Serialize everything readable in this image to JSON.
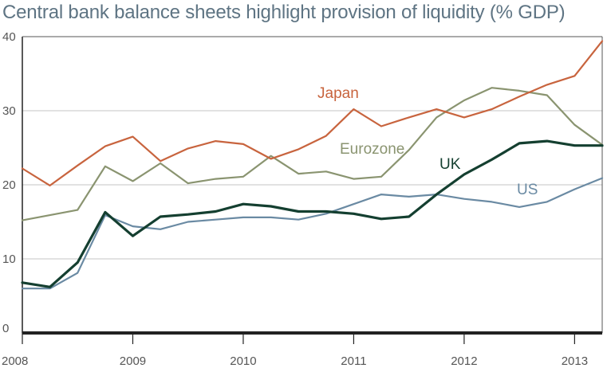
{
  "title": "Central bank balance sheets highlight provision of liquidity (% GDP)",
  "colors": {
    "japan": "#c8643e",
    "eurozone": "#8a9470",
    "uk": "#143f30",
    "us": "#6a8aa3",
    "grid": "#c4c4c4",
    "axis": "#222222"
  },
  "chart_data": {
    "type": "line",
    "title": "Central bank balance sheets highlight provision of liquidity (% GDP)",
    "xlabel": "",
    "ylabel": "",
    "xlim": [
      2008.0,
      2013.25
    ],
    "ylim": [
      0,
      40
    ],
    "yticks": [
      0,
      10,
      20,
      30,
      40
    ],
    "xticks": [
      2008,
      2009,
      2010,
      2011,
      2012,
      2013
    ],
    "ytick_labels": [
      "0",
      "10",
      "20",
      "30",
      "40"
    ],
    "xtick_labels": [
      "2008",
      "2009",
      "2010",
      "2011",
      "2012",
      "2013"
    ],
    "grid": "horizontal",
    "legend": "labels placed next to lines",
    "x": [
      2008.0,
      2008.25,
      2008.5,
      2008.75,
      2009.0,
      2009.25,
      2009.5,
      2009.75,
      2010.0,
      2010.25,
      2010.5,
      2010.75,
      2011.0,
      2011.25,
      2011.5,
      2011.75,
      2012.0,
      2012.25,
      2012.5,
      2012.75,
      2013.0,
      2013.25
    ],
    "series": [
      {
        "name": "Japan",
        "color_key": "japan",
        "values": [
          22.2,
          19.9,
          22.6,
          25.2,
          26.5,
          23.2,
          24.9,
          25.9,
          25.5,
          23.5,
          24.8,
          26.6,
          30.2,
          27.9,
          29.1,
          30.2,
          29.1,
          30.2,
          31.9,
          33.5,
          34.7,
          39.4
        ]
      },
      {
        "name": "Eurozone",
        "color_key": "eurozone",
        "values": [
          15.2,
          15.9,
          16.6,
          22.5,
          20.5,
          22.9,
          20.2,
          20.8,
          21.1,
          23.9,
          21.5,
          21.8,
          20.8,
          21.1,
          24.7,
          29.1,
          31.4,
          33.1,
          32.7,
          32.1,
          28.1,
          25.4
        ]
      },
      {
        "name": "UK",
        "color_key": "uk",
        "values": [
          6.8,
          6.2,
          9.5,
          16.3,
          13.1,
          15.7,
          16.0,
          16.4,
          17.4,
          17.1,
          16.4,
          16.4,
          16.1,
          15.4,
          15.7,
          18.7,
          21.4,
          23.4,
          25.6,
          25.9,
          25.3,
          25.3
        ]
      },
      {
        "name": "US",
        "color_key": "us",
        "values": [
          6.0,
          6.0,
          8.1,
          15.9,
          14.4,
          14.0,
          15.0,
          15.3,
          15.6,
          15.6,
          15.3,
          16.1,
          17.4,
          18.7,
          18.4,
          18.7,
          18.1,
          17.7,
          17.0,
          17.7,
          19.4,
          20.9
        ]
      }
    ],
    "annotations": [
      "Japan",
      "Eurozone",
      "UK",
      "US"
    ]
  }
}
